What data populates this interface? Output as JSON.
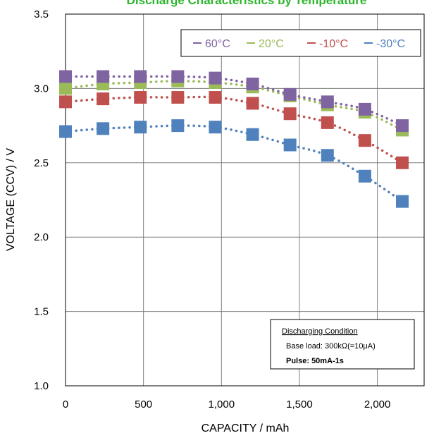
{
  "chart_data": {
    "type": "scatter",
    "title": "Discharge Characteristics by Temperature",
    "xlabel": "CAPACITY / mAh",
    "ylabel": "VOLTAGE (CCV) / V",
    "xlim": [
      0,
      2300
    ],
    "ylim": [
      1.0,
      3.5
    ],
    "x_ticks": [
      "0",
      "500",
      "1,000",
      "1,500",
      "2,000"
    ],
    "y_ticks": [
      "1.0",
      "1.5",
      "2.0",
      "2.5",
      "3.0",
      "3.5"
    ],
    "grid": true,
    "legend_position": "top-right",
    "colors": {
      "60": "#8064a2",
      "20": "#9bbb59",
      "m10": "#c0504d",
      "m30": "#4f81bd"
    },
    "series": [
      {
        "name": "60°C",
        "color": "#8064a2",
        "x": [
          0,
          240,
          480,
          720,
          960,
          1200,
          1440,
          1680,
          1920,
          2160
        ],
        "y": [
          3.08,
          3.08,
          3.08,
          3.08,
          3.07,
          3.03,
          2.96,
          2.91,
          2.86,
          2.75
        ]
      },
      {
        "name": "20°C",
        "color": "#9bbb59",
        "x": [
          0,
          240,
          480,
          720,
          960,
          1200,
          1440,
          1680,
          1920,
          2160
        ],
        "y": [
          3.0,
          3.03,
          3.04,
          3.05,
          3.04,
          3.01,
          2.95,
          2.89,
          2.84,
          2.72
        ]
      },
      {
        "name": "-10°C",
        "color": "#c0504d",
        "x": [
          0,
          240,
          480,
          720,
          960,
          1200,
          1440,
          1680,
          1920,
          2160
        ],
        "y": [
          2.91,
          2.93,
          2.94,
          2.94,
          2.94,
          2.9,
          2.83,
          2.77,
          2.65,
          2.5
        ]
      },
      {
        "name": "-30°C",
        "color": "#4f81bd",
        "x": [
          0,
          240,
          480,
          720,
          960,
          1200,
          1440,
          1680,
          1920,
          2160
        ],
        "y": [
          2.71,
          2.73,
          2.74,
          2.75,
          2.74,
          2.69,
          2.62,
          2.55,
          2.41,
          2.24
        ]
      }
    ],
    "annotation": {
      "heading": "Discharging Condition",
      "line1": "Base load: 300kΩ(=10μA)",
      "line2": "Pulse: 50mA-1s"
    }
  }
}
